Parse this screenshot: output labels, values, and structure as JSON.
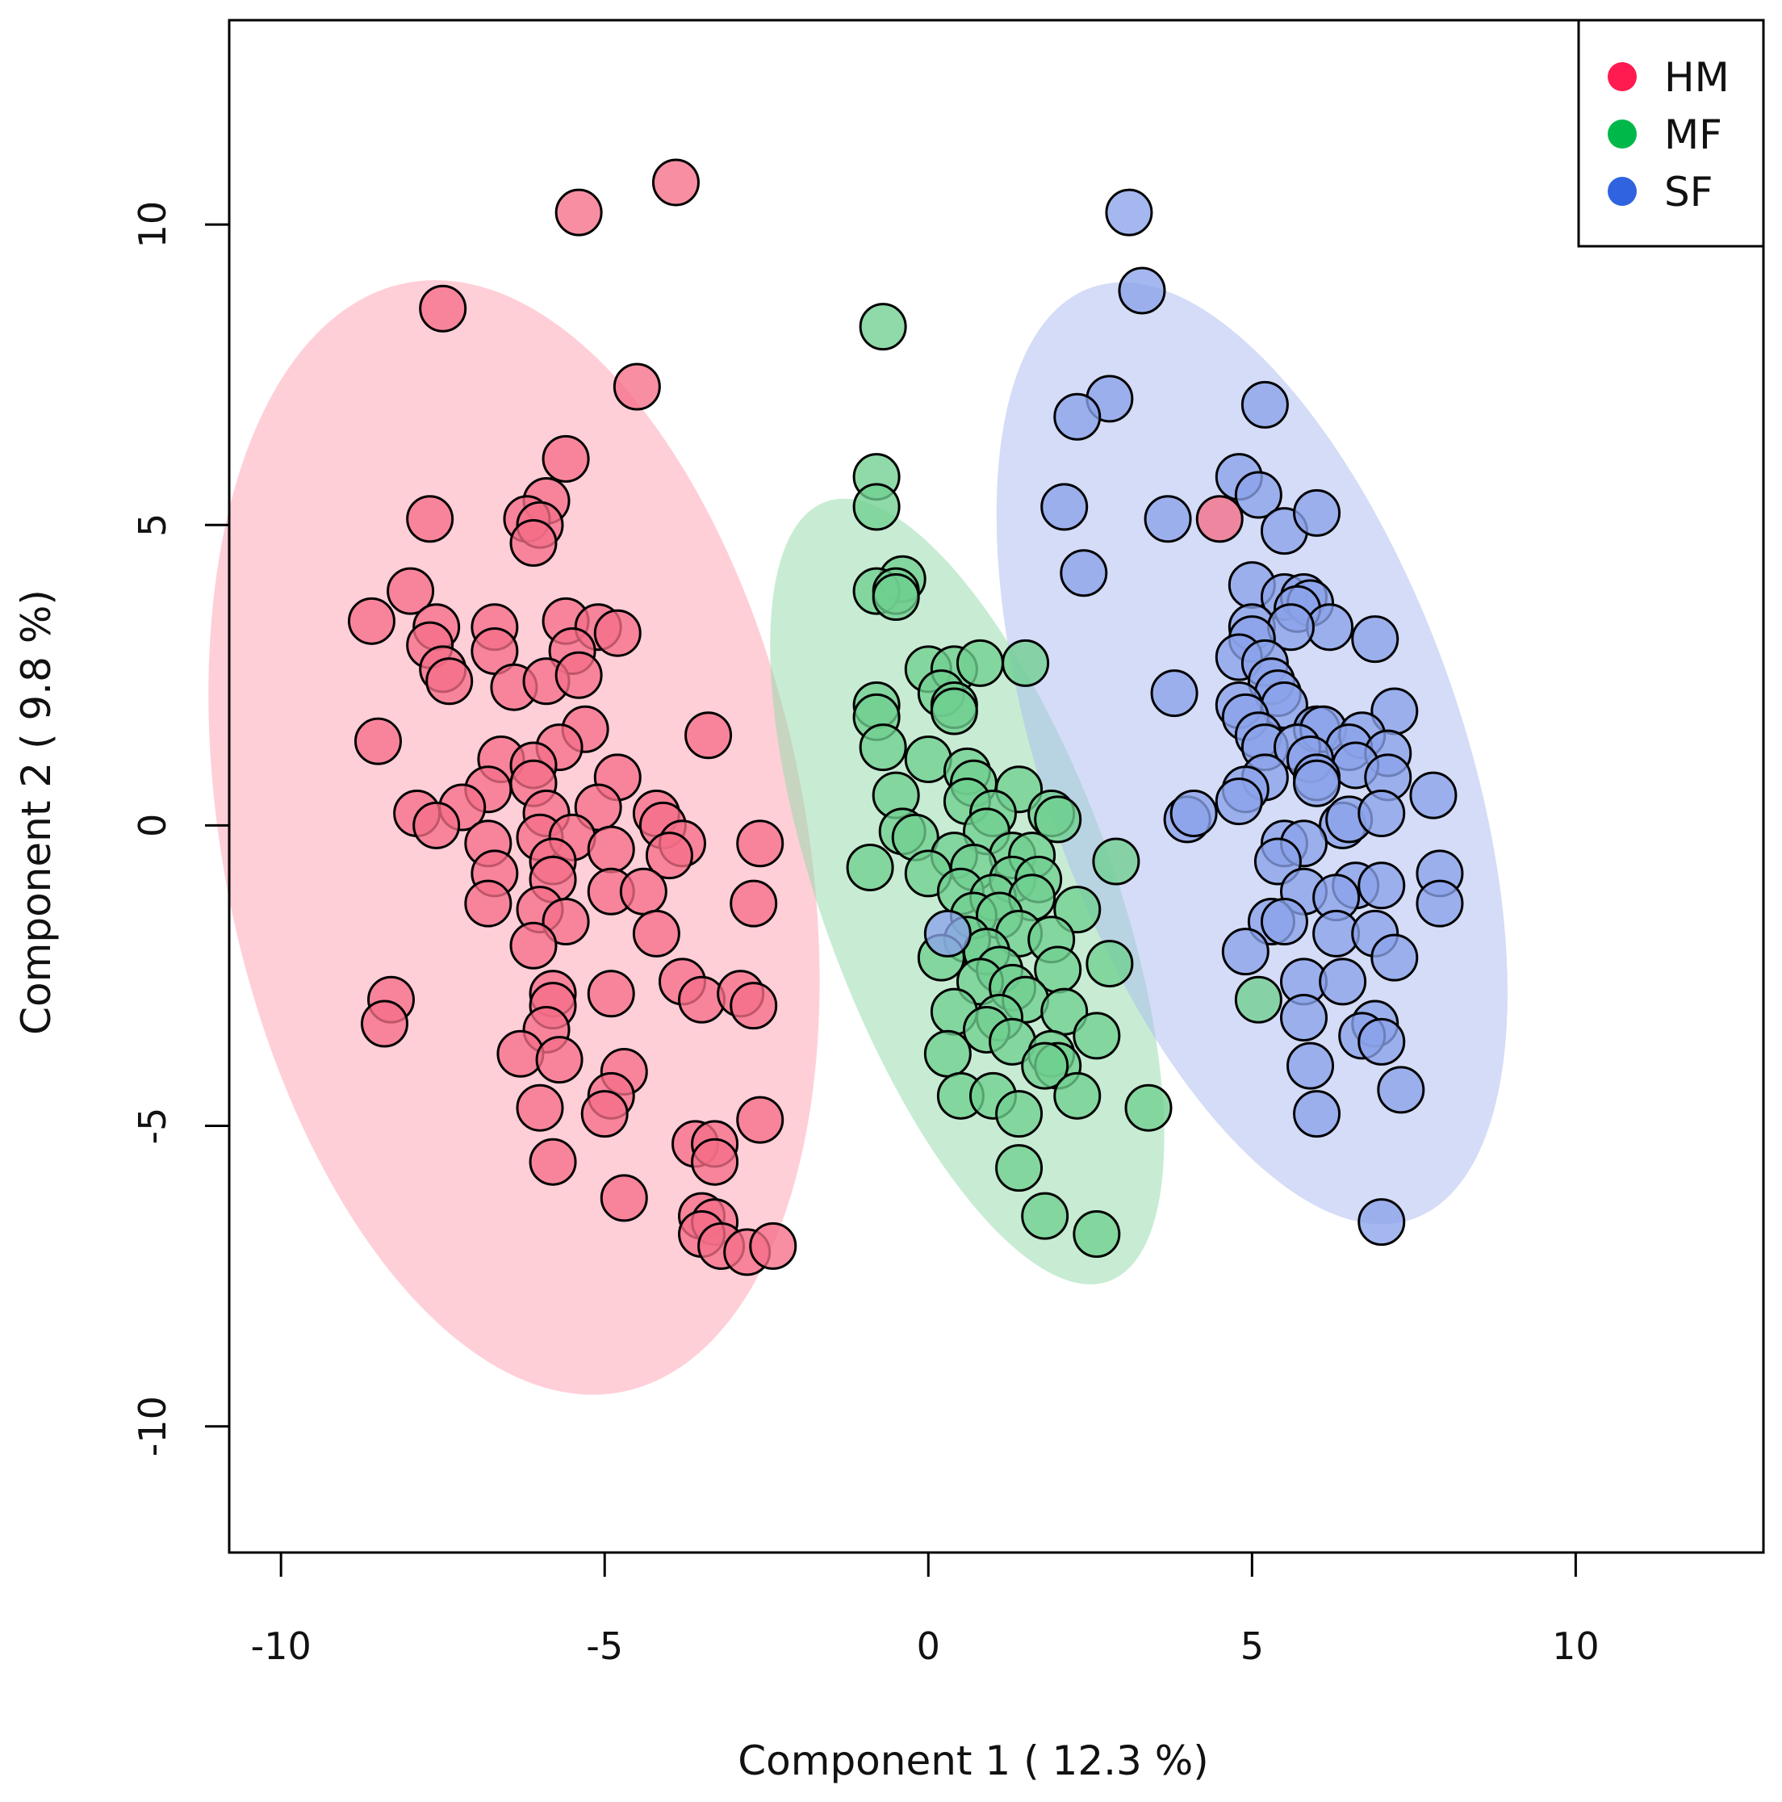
{
  "chart_data": {
    "type": "scatter",
    "title": "",
    "xlabel": "Component 1 ( 12.3 %)",
    "ylabel": "Component 2 ( 9.8 %)",
    "xlim": [
      -10.8,
      12.9
    ],
    "ylim": [
      -12.1,
      13.4
    ],
    "grid": false,
    "legend_position": "top-right",
    "x_ticks": [
      {
        "value": -10,
        "label": "-10"
      },
      {
        "value": -5,
        "label": "-5"
      },
      {
        "value": 0,
        "label": "0"
      },
      {
        "value": 5,
        "label": "5"
      },
      {
        "value": 10,
        "label": "10"
      }
    ],
    "y_ticks": [
      {
        "value": -10,
        "label": "-10"
      },
      {
        "value": -5,
        "label": "-5"
      },
      {
        "value": 0,
        "label": "0"
      },
      {
        "value": 5,
        "label": "5"
      },
      {
        "value": 10,
        "label": "10"
      }
    ],
    "legend": [
      {
        "name": "HM",
        "color": "#ff1a4f"
      },
      {
        "name": "MF",
        "color": "#00b84a"
      },
      {
        "name": "SF",
        "color": "#2f63e0"
      }
    ],
    "ellipses": [
      {
        "series": "HM",
        "cx": -6.4,
        "cy": -0.2,
        "rx": 4.5,
        "ry": 9.4,
        "angle_deg": 11,
        "fill": "#ff9fb2"
      },
      {
        "series": "MF",
        "cx": 0.6,
        "cy": -1.1,
        "rx": 2.25,
        "ry": 6.9,
        "angle_deg": 20,
        "fill": "#8fd9a8"
      },
      {
        "series": "SF",
        "cx": 5.0,
        "cy": 1.2,
        "rx": 3.25,
        "ry": 8.2,
        "angle_deg": 19,
        "fill": "#a9baf0"
      }
    ],
    "series": [
      {
        "name": "HM",
        "fill": "#f56e88",
        "points": [
          [
            -3.9,
            10.7
          ],
          [
            -5.4,
            10.2
          ],
          [
            -7.5,
            8.6
          ],
          [
            -4.5,
            7.3
          ],
          [
            -5.6,
            6.1
          ],
          [
            -5.9,
            5.4
          ],
          [
            -7.7,
            5.1
          ],
          [
            -6.2,
            5.1
          ],
          [
            -6.0,
            5.0
          ],
          [
            -6.1,
            4.7
          ],
          [
            -8.0,
            3.9
          ],
          [
            -8.6,
            3.4
          ],
          [
            -7.6,
            3.3
          ],
          [
            -7.7,
            3.0
          ],
          [
            -6.7,
            3.3
          ],
          [
            -5.6,
            3.4
          ],
          [
            -5.1,
            3.3
          ],
          [
            -4.8,
            3.2
          ],
          [
            -6.7,
            2.9
          ],
          [
            -5.5,
            2.9
          ],
          [
            -7.5,
            2.6
          ],
          [
            -7.4,
            2.4
          ],
          [
            -6.4,
            2.3
          ],
          [
            -5.9,
            2.4
          ],
          [
            -5.4,
            2.5
          ],
          [
            -8.5,
            1.4
          ],
          [
            -5.3,
            1.6
          ],
          [
            -3.4,
            1.5
          ],
          [
            -5.7,
            1.3
          ],
          [
            -6.6,
            1.1
          ],
          [
            -6.1,
            1.0
          ],
          [
            -4.8,
            0.8
          ],
          [
            -6.8,
            0.6
          ],
          [
            -6.1,
            0.7
          ],
          [
            -7.2,
            0.3
          ],
          [
            -7.9,
            0.2
          ],
          [
            -7.6,
            0.0
          ],
          [
            -5.9,
            0.2
          ],
          [
            -5.1,
            0.3
          ],
          [
            -4.2,
            0.2
          ],
          [
            -4.1,
            0.0
          ],
          [
            -3.8,
            -0.3
          ],
          [
            -2.6,
            -0.3
          ],
          [
            -6.8,
            -0.3
          ],
          [
            -6.0,
            -0.2
          ],
          [
            -5.5,
            -0.2
          ],
          [
            -4.9,
            -0.4
          ],
          [
            -4.0,
            -0.5
          ],
          [
            -5.8,
            -0.6
          ],
          [
            -6.7,
            -0.8
          ],
          [
            -5.8,
            -0.9
          ],
          [
            -4.9,
            -1.1
          ],
          [
            -4.4,
            -1.1
          ],
          [
            -2.7,
            -1.3
          ],
          [
            -6.8,
            -1.3
          ],
          [
            -6.0,
            -1.4
          ],
          [
            -5.6,
            -1.6
          ],
          [
            -4.2,
            -1.8
          ],
          [
            -6.1,
            -2.0
          ],
          [
            -3.8,
            -2.6
          ],
          [
            -3.5,
            -2.9
          ],
          [
            -2.9,
            -2.8
          ],
          [
            -2.7,
            -3.0
          ],
          [
            -4.9,
            -2.8
          ],
          [
            -5.8,
            -2.8
          ],
          [
            -5.8,
            -3.0
          ],
          [
            -8.3,
            -2.9
          ],
          [
            -8.4,
            -3.3
          ],
          [
            -5.9,
            -3.4
          ],
          [
            -6.3,
            -3.8
          ],
          [
            -5.7,
            -3.9
          ],
          [
            -4.7,
            -4.1
          ],
          [
            -4.9,
            -4.5
          ],
          [
            -5.0,
            -4.8
          ],
          [
            -6.0,
            -4.7
          ],
          [
            -2.6,
            -4.9
          ],
          [
            -3.6,
            -5.3
          ],
          [
            -3.3,
            -5.3
          ],
          [
            -5.8,
            -5.6
          ],
          [
            -3.3,
            -5.6
          ],
          [
            -4.7,
            -6.2
          ],
          [
            -3.5,
            -6.5
          ],
          [
            -3.3,
            -6.6
          ],
          [
            -3.5,
            -6.8
          ],
          [
            -3.2,
            -7.0
          ],
          [
            -2.8,
            -7.1
          ],
          [
            -2.4,
            -7.0
          ],
          [
            4.5,
            5.1
          ]
        ]
      },
      {
        "name": "MF",
        "fill": "#6fd08f",
        "points": [
          [
            -0.7,
            8.3
          ],
          [
            -0.8,
            5.8
          ],
          [
            -0.8,
            5.3
          ],
          [
            -0.4,
            4.1
          ],
          [
            -0.8,
            3.9
          ],
          [
            -0.5,
            3.9
          ],
          [
            -0.5,
            3.8
          ],
          [
            0.0,
            2.6
          ],
          [
            0.4,
            2.6
          ],
          [
            0.8,
            2.7
          ],
          [
            1.5,
            2.7
          ],
          [
            0.2,
            2.2
          ],
          [
            0.4,
            2.0
          ],
          [
            -0.8,
            2.0
          ],
          [
            -0.8,
            1.8
          ],
          [
            0.4,
            1.9
          ],
          [
            -0.7,
            1.3
          ],
          [
            0.0,
            1.1
          ],
          [
            0.6,
            0.9
          ],
          [
            0.7,
            0.7
          ],
          [
            1.4,
            0.6
          ],
          [
            -0.5,
            0.5
          ],
          [
            0.6,
            0.4
          ],
          [
            1.0,
            0.2
          ],
          [
            1.9,
            0.2
          ],
          [
            2.0,
            0.1
          ],
          [
            0.9,
            -0.1
          ],
          [
            -0.4,
            -0.1
          ],
          [
            -0.2,
            -0.2
          ],
          [
            0.4,
            -0.5
          ],
          [
            1.3,
            -0.5
          ],
          [
            1.6,
            -0.5
          ],
          [
            -0.9,
            -0.7
          ],
          [
            0.0,
            -0.8
          ],
          [
            0.7,
            -0.7
          ],
          [
            1.3,
            -0.9
          ],
          [
            1.7,
            -0.9
          ],
          [
            2.9,
            -0.6
          ],
          [
            0.5,
            -1.1
          ],
          [
            1.0,
            -1.2
          ],
          [
            1.6,
            -1.2
          ],
          [
            2.3,
            -1.4
          ],
          [
            0.7,
            -1.5
          ],
          [
            1.1,
            -1.5
          ],
          [
            0.6,
            -1.9
          ],
          [
            1.4,
            -1.8
          ],
          [
            1.9,
            -1.9
          ],
          [
            0.9,
            -2.1
          ],
          [
            1.1,
            -2.4
          ],
          [
            2.0,
            -2.4
          ],
          [
            2.8,
            -2.3
          ],
          [
            0.2,
            -2.2
          ],
          [
            0.8,
            -2.6
          ],
          [
            1.3,
            -2.7
          ],
          [
            1.5,
            -2.9
          ],
          [
            0.4,
            -3.1
          ],
          [
            1.1,
            -3.2
          ],
          [
            2.1,
            -3.1
          ],
          [
            0.9,
            -3.4
          ],
          [
            1.3,
            -3.6
          ],
          [
            2.6,
            -3.5
          ],
          [
            0.3,
            -3.8
          ],
          [
            1.9,
            -3.8
          ],
          [
            2.0,
            -4.0
          ],
          [
            1.8,
            -4.0
          ],
          [
            0.5,
            -4.5
          ],
          [
            1.0,
            -4.5
          ],
          [
            2.3,
            -4.5
          ],
          [
            1.4,
            -4.8
          ],
          [
            3.4,
            -4.7
          ],
          [
            1.4,
            -5.7
          ],
          [
            1.8,
            -6.5
          ],
          [
            2.6,
            -6.8
          ],
          [
            5.1,
            -2.9
          ]
        ]
      },
      {
        "name": "SF",
        "fill": "#8aa3ea",
        "points": [
          [
            3.1,
            10.2
          ],
          [
            3.3,
            8.9
          ],
          [
            2.8,
            7.1
          ],
          [
            2.3,
            6.8
          ],
          [
            5.2,
            7.0
          ],
          [
            4.8,
            5.8
          ],
          [
            5.1,
            5.5
          ],
          [
            2.1,
            5.3
          ],
          [
            3.7,
            5.1
          ],
          [
            5.5,
            4.9
          ],
          [
            6.0,
            5.2
          ],
          [
            2.4,
            4.2
          ],
          [
            5.0,
            4.0
          ],
          [
            5.5,
            3.8
          ],
          [
            5.8,
            3.8
          ],
          [
            5.9,
            3.7
          ],
          [
            5.7,
            3.6
          ],
          [
            6.2,
            3.3
          ],
          [
            5.0,
            3.3
          ],
          [
            5.6,
            3.3
          ],
          [
            5.0,
            3.1
          ],
          [
            6.9,
            3.1
          ],
          [
            4.8,
            2.8
          ],
          [
            5.2,
            2.7
          ],
          [
            5.3,
            2.4
          ],
          [
            3.8,
            2.2
          ],
          [
            5.4,
            2.2
          ],
          [
            4.8,
            2.0
          ],
          [
            5.5,
            2.0
          ],
          [
            7.2,
            1.9
          ],
          [
            4.9,
            1.8
          ],
          [
            6.0,
            1.6
          ],
          [
            6.1,
            1.6
          ],
          [
            5.1,
            1.5
          ],
          [
            6.7,
            1.5
          ],
          [
            5.2,
            1.3
          ],
          [
            5.7,
            1.3
          ],
          [
            6.5,
            1.3
          ],
          [
            7.1,
            1.2
          ],
          [
            5.9,
            1.1
          ],
          [
            6.6,
            1.0
          ],
          [
            5.2,
            0.8
          ],
          [
            6.0,
            0.8
          ],
          [
            7.1,
            0.8
          ],
          [
            6.0,
            0.7
          ],
          [
            4.9,
            0.6
          ],
          [
            4.8,
            0.4
          ],
          [
            7.8,
            0.5
          ],
          [
            4.0,
            0.1
          ],
          [
            4.1,
            0.2
          ],
          [
            6.4,
            0.0
          ],
          [
            6.5,
            0.1
          ],
          [
            7.0,
            0.2
          ],
          [
            5.5,
            -0.3
          ],
          [
            5.8,
            -0.3
          ],
          [
            5.4,
            -0.6
          ],
          [
            7.9,
            -0.8
          ],
          [
            6.6,
            -1.0
          ],
          [
            7.0,
            -1.0
          ],
          [
            5.8,
            -1.1
          ],
          [
            6.3,
            -1.2
          ],
          [
            7.9,
            -1.3
          ],
          [
            5.3,
            -1.6
          ],
          [
            5.5,
            -1.6
          ],
          [
            6.3,
            -1.8
          ],
          [
            6.9,
            -1.8
          ],
          [
            4.9,
            -2.1
          ],
          [
            7.2,
            -2.2
          ],
          [
            5.8,
            -2.6
          ],
          [
            6.4,
            -2.6
          ],
          [
            5.8,
            -3.2
          ],
          [
            6.9,
            -3.3
          ],
          [
            6.7,
            -3.5
          ],
          [
            7.0,
            -3.6
          ],
          [
            5.9,
            -4.0
          ],
          [
            7.3,
            -4.4
          ],
          [
            6.0,
            -4.8
          ],
          [
            7.0,
            -6.6
          ],
          [
            0.3,
            -1.8
          ]
        ]
      }
    ]
  }
}
